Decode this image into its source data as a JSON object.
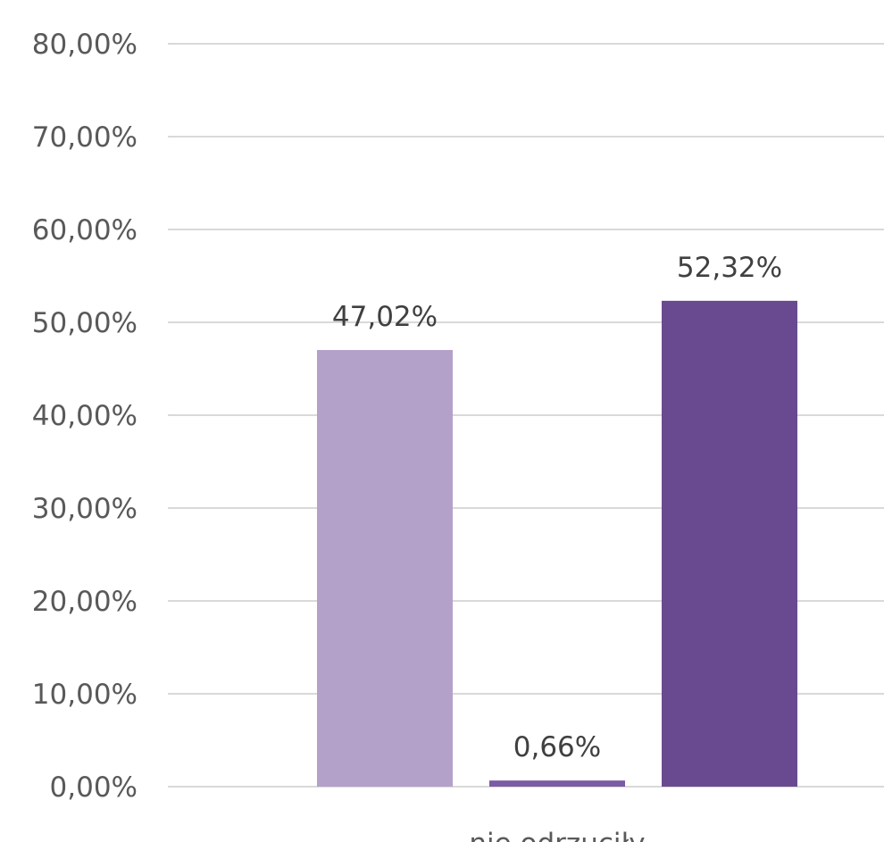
{
  "chart_data": {
    "type": "bar",
    "categories": [
      "nie odrzuciły"
    ],
    "series": [
      {
        "values": [
          47.02
        ],
        "label": "47,02%",
        "color": "#b4a1c9"
      },
      {
        "values": [
          0.66
        ],
        "label": "0,66%",
        "color": "#7a5ba5"
      },
      {
        "values": [
          52.32
        ],
        "label": "52,32%",
        "color": "#694a91"
      }
    ],
    "ylim": [
      0,
      80
    ],
    "ytick_values": [
      0,
      10,
      20,
      30,
      40,
      50,
      60,
      70,
      80
    ],
    "ytick_labels": [
      "0,00%",
      "10,00%",
      "20,00%",
      "30,00%",
      "40,00%",
      "50,00%",
      "60,00%",
      "70,00%",
      "80,00%"
    ],
    "grid": true,
    "gridline_color": "#d9d9d9",
    "tick_label_color": "#595959",
    "data_label_color": "#404040"
  }
}
